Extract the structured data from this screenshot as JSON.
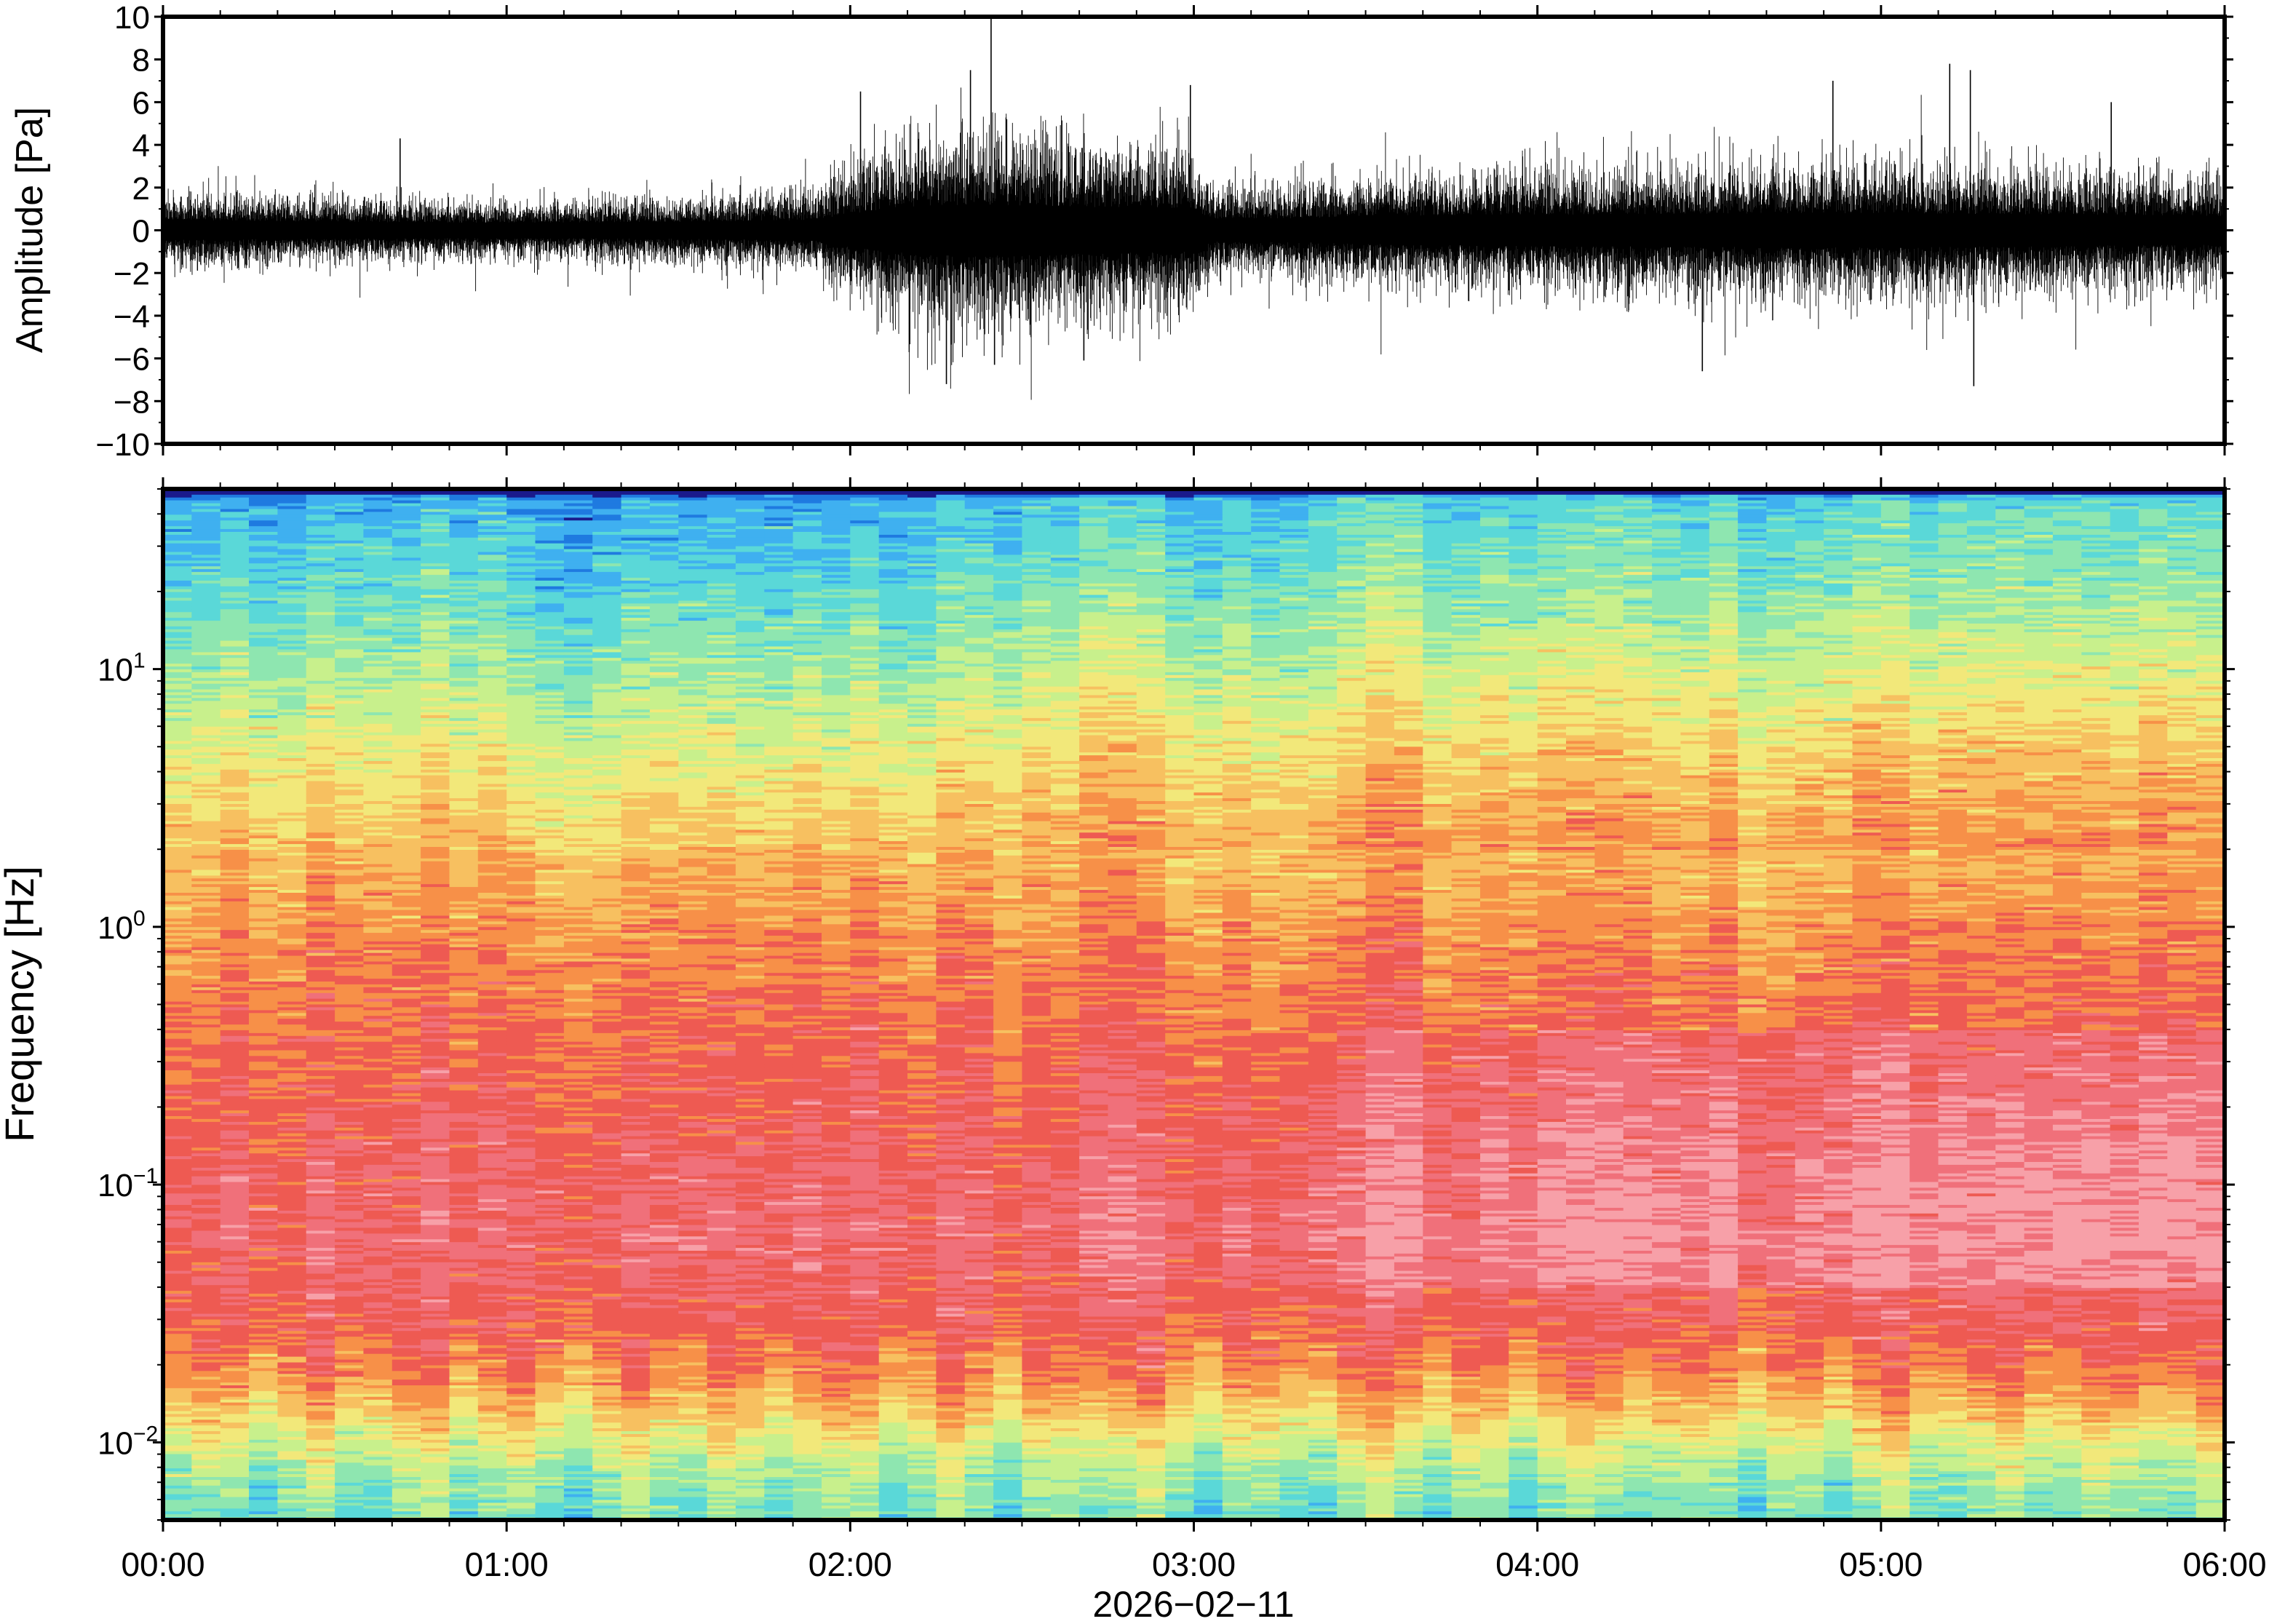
{
  "chart_data": [
    {
      "type": "line",
      "panel": "waveform",
      "ylabel": "Amplitude [Pa]",
      "xlabel": "",
      "ylim": [
        -10,
        10
      ],
      "y_ticks": [
        10,
        8,
        6,
        4,
        2,
        0,
        -2,
        -4,
        -6,
        -8,
        -10
      ],
      "y_tick_labels": [
        "10",
        "8",
        "6",
        "4",
        "2",
        "0",
        "−2",
        "−4",
        "−6",
        "−8",
        "−10"
      ],
      "x_range_hours": [
        0,
        6
      ],
      "envelope": {
        "x_hours": [
          0,
          0.5,
          1.0,
          1.5,
          1.9,
          2.0,
          2.1,
          2.25,
          2.4,
          2.6,
          2.8,
          3.0,
          3.05,
          3.3,
          3.6,
          4.0,
          4.5,
          5.0,
          5.5,
          6.0
        ],
        "half_width_pa": [
          1.3,
          1.1,
          1.0,
          1.1,
          1.4,
          2.2,
          2.8,
          3.3,
          3.4,
          3.2,
          3.0,
          2.8,
          1.5,
          1.6,
          1.9,
          2.1,
          2.2,
          2.3,
          2.1,
          1.9
        ]
      },
      "spikes": [
        {
          "x_hours": 0.69,
          "y_pa": 4.3
        },
        {
          "x_hours": 2.03,
          "y_pa": 6.5
        },
        {
          "x_hours": 2.28,
          "y_pa": -7.2
        },
        {
          "x_hours": 2.35,
          "y_pa": 7.5
        },
        {
          "x_hours": 2.41,
          "y_pa": 9.9
        },
        {
          "x_hours": 2.42,
          "y_pa": -6.3
        },
        {
          "x_hours": 2.68,
          "y_pa": -6.1
        },
        {
          "x_hours": 2.99,
          "y_pa": 6.8
        },
        {
          "x_hours": 4.48,
          "y_pa": -6.6
        },
        {
          "x_hours": 4.86,
          "y_pa": 7.0
        },
        {
          "x_hours": 5.2,
          "y_pa": 7.8
        },
        {
          "x_hours": 5.26,
          "y_pa": 7.5
        },
        {
          "x_hours": 5.27,
          "y_pa": -7.3
        },
        {
          "x_hours": 5.67,
          "y_pa": 6.0
        }
      ]
    },
    {
      "type": "heatmap",
      "panel": "spectrogram",
      "ylabel": "Frequency [Hz]",
      "xlabel": "2026−02−11",
      "y_scale": "log",
      "ylim": [
        0.005,
        50
      ],
      "y_tick_values": [
        0.01,
        0.1,
        1,
        10
      ],
      "y_tick_labels": [
        {
          "base": "10",
          "exp": "−2"
        },
        {
          "base": "10",
          "exp": "−1"
        },
        {
          "base": "10",
          "exp": "0"
        },
        {
          "base": "10",
          "exp": "1"
        }
      ],
      "x_tick_labels": [
        "00:00",
        "01:00",
        "02:00",
        "03:00",
        "04:00",
        "05:00",
        "06:00"
      ],
      "x_range_hours": [
        0,
        6
      ],
      "colormap": [
        "#1a1a8c",
        "#1f7ae0",
        "#3fb0f0",
        "#5ad8d8",
        "#8ee6b0",
        "#c8f08c",
        "#f2e87a",
        "#f7c060",
        "#f79048",
        "#ee5a52",
        "#f0707a",
        "#f7a0a8"
      ],
      "color_by_log10_freq": {
        "log10_freq": [
          -2.3,
          -2.15,
          -2.0,
          -1.85,
          -1.7,
          -1.5,
          -1.2,
          -0.9,
          -0.6,
          -0.3,
          0.0,
          0.3,
          0.6,
          0.9,
          1.1,
          1.3,
          1.5,
          1.65,
          1.7
        ],
        "color_index": [
          3.6,
          4.4,
          5.6,
          7.2,
          8.4,
          9.3,
          9.8,
          9.5,
          9.0,
          8.6,
          8.0,
          7.2,
          6.2,
          5.0,
          4.2,
          3.4,
          2.7,
          2.2,
          0.0
        ]
      }
    }
  ]
}
